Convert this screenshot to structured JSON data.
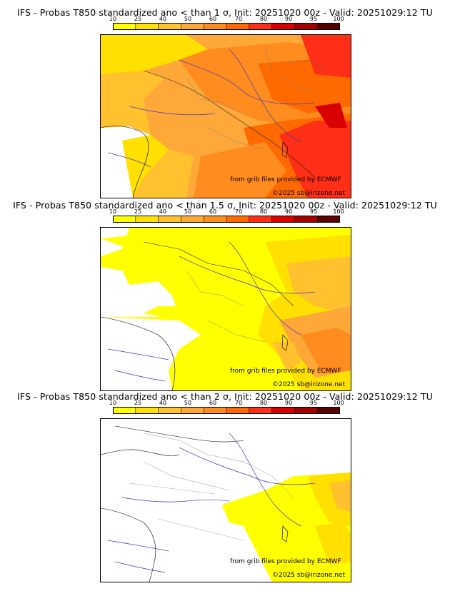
{
  "legend": {
    "ticks": [
      "10",
      "25",
      "40",
      "50",
      "60",
      "70",
      "80",
      "90",
      "95",
      "100"
    ],
    "colors": [
      "#ffff00",
      "#ffe000",
      "#ffc12e",
      "#ffa83a",
      "#ff8c1f",
      "#ff6a00",
      "#ff2e16",
      "#d90000",
      "#a30000",
      "#5a0000"
    ]
  },
  "panels": [
    {
      "title": "IFS - Probas T850  standardized ano < than 1 σ, Init: 20251020 00z - Valid: 20251029:12 TU",
      "credit": "from grib files provided by ECMWF",
      "copyright": "©2025 sb@irizone.net"
    },
    {
      "title": "IFS - Probas T850  standardized ano < than 1.5 σ, Init: 20251020 00z - Valid: 20251029:12 TU",
      "credit": "from grib files provided by ECMWF",
      "copyright": "©2025 sb@irizone.net"
    },
    {
      "title": "IFS - Probas T850  standardized ano < than 2 σ, Init: 20251020 00z - Valid: 20251029:12 TU",
      "credit": "from grib files provided by ECMWF",
      "copyright": "©2025 sb@irizone.net"
    }
  ]
}
